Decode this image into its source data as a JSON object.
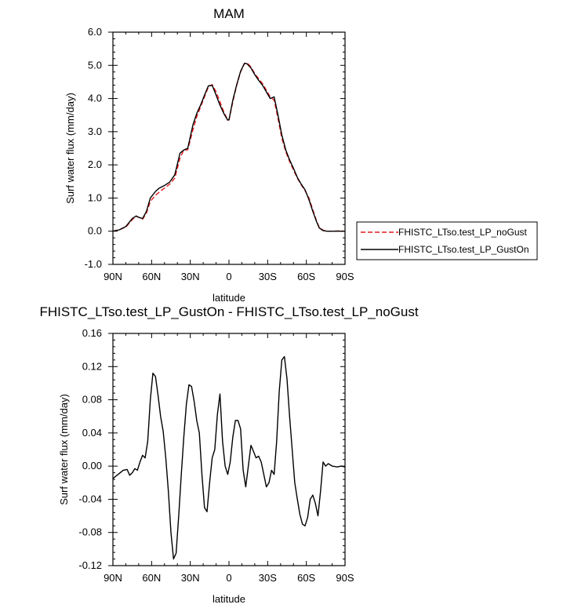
{
  "chart_data": [
    {
      "type": "line",
      "title": "MAM",
      "xlabel": "latitude",
      "ylabel": "Surf water flux (mm/day)",
      "xlim": [
        90,
        -90
      ],
      "ylim": [
        -1.0,
        6.0
      ],
      "x_ticks": [
        90,
        60,
        30,
        0,
        -30,
        -60,
        -90
      ],
      "x_tick_labels": [
        "90N",
        "60N",
        "30N",
        "0",
        "30S",
        "60S",
        "90S"
      ],
      "y_ticks": [
        -1.0,
        0.0,
        1.0,
        2.0,
        3.0,
        4.0,
        5.0,
        6.0
      ],
      "y_tick_labels": [
        "-1.0",
        "0.0",
        "1.0",
        "2.0",
        "3.0",
        "4.0",
        "5.0",
        "6.0"
      ],
      "grid": false,
      "legend_position": "outside-right",
      "series": [
        {
          "name": "FHISTC_LTso.test_LP_noGust",
          "color": "#e41a1c",
          "dash": "dashed",
          "x": [
            90,
            85,
            80,
            75,
            72,
            70,
            67,
            64,
            61,
            57,
            54,
            50,
            46,
            42,
            38,
            35,
            32,
            28,
            25,
            22,
            19,
            16,
            13,
            10,
            7,
            4,
            1,
            0,
            -3,
            -6,
            -9,
            -12,
            -14,
            -17,
            -20,
            -23,
            -26,
            -29,
            -32,
            -35,
            -38,
            -41,
            -44,
            -47,
            -50,
            -53,
            -56,
            -59,
            -62,
            -65,
            -68,
            -70,
            -73,
            -76,
            -80,
            -85,
            -90
          ],
          "values": [
            0.0,
            0.05,
            0.12,
            0.35,
            0.45,
            0.42,
            0.36,
            0.55,
            0.9,
            1.08,
            1.18,
            1.3,
            1.42,
            1.6,
            2.2,
            2.45,
            2.45,
            3.05,
            3.45,
            3.75,
            4.05,
            4.35,
            4.42,
            4.2,
            3.9,
            3.6,
            3.35,
            3.35,
            3.9,
            4.4,
            4.8,
            5.05,
            5.08,
            4.95,
            4.75,
            4.6,
            4.45,
            4.25,
            4.05,
            3.95,
            3.4,
            2.8,
            2.4,
            2.1,
            1.85,
            1.6,
            1.4,
            1.22,
            1.0,
            0.65,
            0.3,
            0.12,
            0.03,
            0.0,
            0.0,
            0.01,
            0.0
          ]
        },
        {
          "name": "FHISTC_LTso.test_LP_GustOn",
          "color": "#000000",
          "dash": "solid",
          "x": [
            90,
            85,
            80,
            75,
            72,
            70,
            67,
            64,
            61,
            57,
            54,
            50,
            46,
            42,
            38,
            35,
            32,
            28,
            25,
            22,
            19,
            16,
            13,
            10,
            7,
            4,
            1,
            0,
            -3,
            -6,
            -9,
            -12,
            -14,
            -17,
            -20,
            -23,
            -26,
            -29,
            -32,
            -35,
            -38,
            -41,
            -44,
            -47,
            -50,
            -53,
            -56,
            -59,
            -62,
            -65,
            -68,
            -70,
            -73,
            -76,
            -80,
            -85,
            -90
          ],
          "values": [
            0.0,
            0.04,
            0.14,
            0.38,
            0.46,
            0.42,
            0.38,
            0.6,
            1.0,
            1.2,
            1.3,
            1.38,
            1.48,
            1.7,
            2.35,
            2.45,
            2.5,
            3.2,
            3.55,
            3.8,
            4.1,
            4.38,
            4.4,
            4.1,
            3.8,
            3.55,
            3.35,
            3.36,
            3.95,
            4.42,
            4.82,
            5.06,
            5.05,
            4.92,
            4.72,
            4.55,
            4.4,
            4.2,
            4.0,
            4.05,
            3.5,
            2.9,
            2.45,
            2.15,
            1.9,
            1.62,
            1.42,
            1.25,
            0.95,
            0.6,
            0.28,
            0.1,
            0.02,
            0.0,
            0.0,
            0.0,
            0.0
          ]
        }
      ]
    },
    {
      "type": "line",
      "title": "FHISTC_LTso.test_LP_GustOn - FHISTC_LTso.test_LP_noGust",
      "xlabel": "latitude",
      "ylabel": "Surf water flux (mm/day)",
      "xlim": [
        90,
        -90
      ],
      "ylim": [
        -0.12,
        0.16
      ],
      "x_ticks": [
        90,
        60,
        30,
        0,
        -30,
        -60,
        -90
      ],
      "x_tick_labels": [
        "90N",
        "60N",
        "30N",
        "0",
        "30S",
        "60S",
        "90S"
      ],
      "y_ticks": [
        -0.12,
        -0.08,
        -0.04,
        0.0,
        0.04,
        0.08,
        0.12,
        0.16
      ],
      "y_tick_labels": [
        "-0.12",
        "-0.08",
        "-0.04",
        "0.00",
        "0.04",
        "0.08",
        "0.12",
        "0.16"
      ],
      "grid": false,
      "series": [
        {
          "color": "#000000",
          "dash": "solid",
          "x": [
            90,
            86,
            82,
            79,
            77,
            75,
            73,
            71,
            69,
            67,
            65,
            63,
            61,
            59,
            57,
            55,
            53,
            51,
            49,
            47,
            45,
            43,
            41,
            39,
            37,
            35,
            33,
            31,
            29,
            27,
            25,
            23,
            21,
            19,
            17,
            15,
            13,
            11,
            9,
            7,
            5,
            3,
            1,
            -1,
            -3,
            -5,
            -7,
            -9,
            -11,
            -13,
            -15,
            -17,
            -19,
            -21,
            -23,
            -25,
            -27,
            -29,
            -31,
            -33,
            -35,
            -37,
            -39,
            -41,
            -43,
            -45,
            -47,
            -49,
            -51,
            -53,
            -55,
            -57,
            -59,
            -61,
            -63,
            -65,
            -67,
            -69,
            -71,
            -73,
            -75,
            -77,
            -80,
            -84,
            -87,
            -90
          ],
          "values": [
            -0.015,
            -0.01,
            -0.005,
            -0.004,
            -0.011,
            -0.008,
            -0.003,
            -0.005,
            0.005,
            0.013,
            0.01,
            0.03,
            0.08,
            0.112,
            0.108,
            0.085,
            0.06,
            0.042,
            0.01,
            -0.03,
            -0.08,
            -0.112,
            -0.105,
            -0.06,
            -0.01,
            0.035,
            0.075,
            0.098,
            0.096,
            0.078,
            0.055,
            0.04,
            -0.01,
            -0.05,
            -0.055,
            -0.02,
            0.01,
            0.02,
            0.062,
            0.087,
            0.03,
            0.0,
            -0.01,
            0.005,
            0.035,
            0.055,
            0.055,
            0.045,
            -0.005,
            -0.025,
            0.0,
            0.025,
            0.018,
            0.01,
            0.012,
            0.005,
            -0.01,
            -0.025,
            -0.02,
            -0.005,
            -0.01,
            0.03,
            0.09,
            0.128,
            0.132,
            0.105,
            0.06,
            0.02,
            -0.02,
            -0.04,
            -0.058,
            -0.07,
            -0.072,
            -0.062,
            -0.04,
            -0.035,
            -0.045,
            -0.06,
            -0.03,
            0.005,
            0.0,
            0.003,
            0.0,
            -0.001,
            0.0,
            -0.001
          ]
        }
      ]
    }
  ]
}
